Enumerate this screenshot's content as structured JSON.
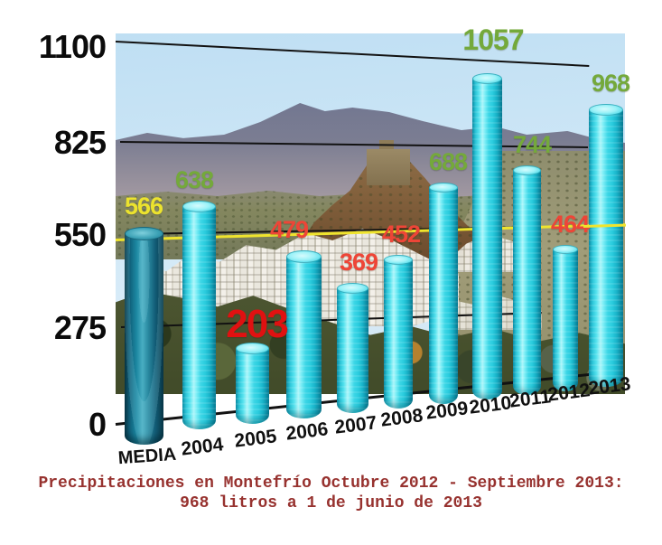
{
  "y_axis": {
    "ticks": [
      "1100",
      "825",
      "550",
      "275",
      "0"
    ]
  },
  "caption": {
    "line1": "Precipitaciones en Montefrío Octubre 2012 - Septiembre 2013:",
    "line2": "968 litros a 1 de junio de 2013",
    "color": "#97322f"
  },
  "chart_data": {
    "type": "bar",
    "title": "Precipitaciones en Montefrío Octubre 2012 - Septiembre 2013: 968 litros a 1 de junio de 2013",
    "categories": [
      "MEDIA",
      "2004",
      "2005",
      "2006",
      "2007",
      "2008",
      "2009",
      "2010",
      "2011",
      "2012",
      "2013"
    ],
    "values": [
      566,
      638,
      203,
      479,
      369,
      452,
      688,
      1057,
      744,
      464,
      968
    ],
    "unit": "litros",
    "ylim": [
      0,
      1100
    ],
    "y_ticks": [
      0,
      275,
      550,
      825,
      1100
    ],
    "black_gridlines_at": [
      1100,
      825,
      550,
      275
    ],
    "media_line_value": 566,
    "media_line_color": "#efe42e",
    "bar_color": "#35d4e6",
    "media_bar_color": "#1b7f98",
    "label_colors": [
      "#ece32e",
      "#74a93b",
      "#e01111",
      "#ee4537",
      "#ee4537",
      "#ee4537",
      "#74a93b",
      "#74a93b",
      "#74a93b",
      "#ee4537",
      "#74a93b"
    ],
    "emphasized_categories": [
      "2005",
      "2010"
    ],
    "background": "photo of Montefrío hill town",
    "grid": "hand-drawn slanted lines",
    "legend_position": "none"
  }
}
